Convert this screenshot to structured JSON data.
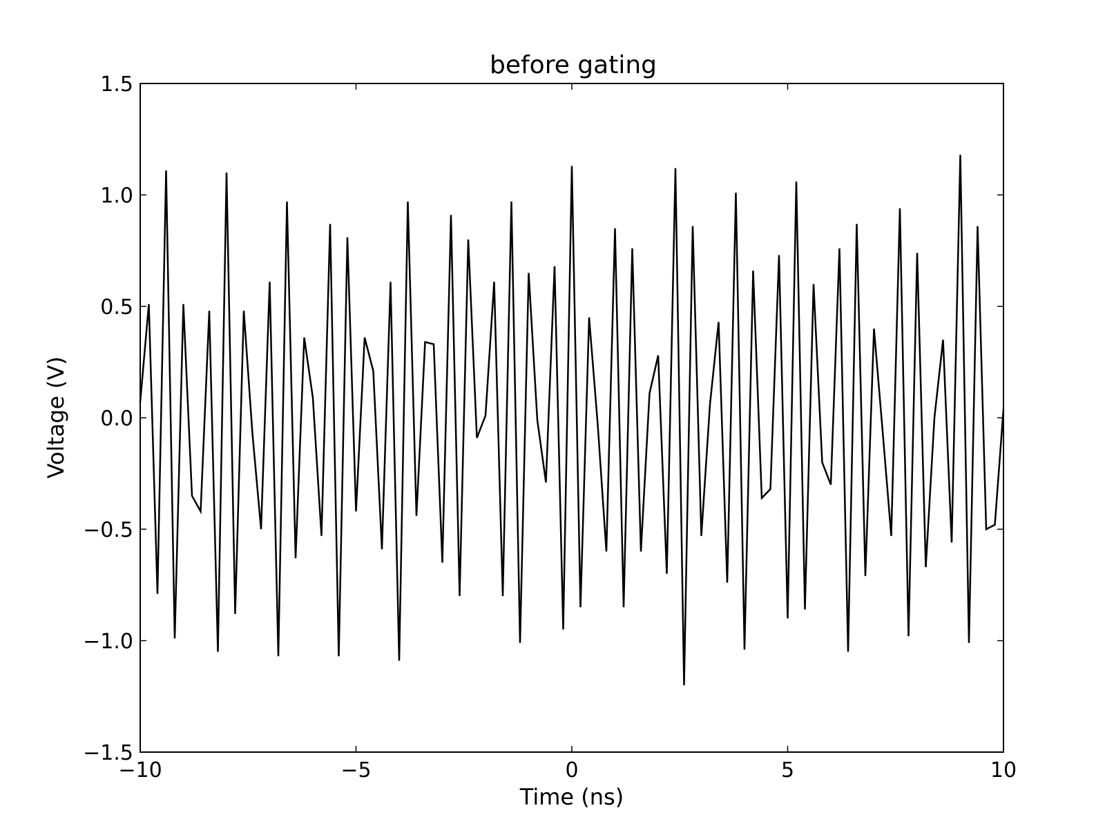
{
  "chart_data": {
    "type": "line",
    "title": "before gating",
    "xlabel": "Time (ns)",
    "ylabel": "Voltage (V)",
    "xlim": [
      -10,
      10
    ],
    "ylim": [
      -1.5,
      1.5
    ],
    "xticks": [
      -10,
      -5,
      0,
      5,
      10
    ],
    "yticks": [
      -1.5,
      -1.0,
      -0.5,
      0.0,
      0.5,
      1.0,
      1.5
    ],
    "xtick_labels": [
      "−10",
      "−5",
      "0",
      "5",
      "10"
    ],
    "ytick_labels": [
      "−1.5",
      "−1.0",
      "−0.5",
      "0.0",
      "0.5",
      "1.0",
      "1.5"
    ],
    "grid": false,
    "line_color": "#000000",
    "series": [
      {
        "x": [
          -10.0,
          -9.8,
          -9.6,
          -9.4,
          -9.2,
          -9.0,
          -8.8,
          -8.6,
          -8.4,
          -8.2,
          -8.0,
          -7.8,
          -7.6,
          -7.4,
          -7.2,
          -7.0,
          -6.8,
          -6.6,
          -6.4,
          -6.2,
          -6.0,
          -5.8,
          -5.6,
          -5.4,
          -5.2,
          -5.0,
          -4.8,
          -4.6,
          -4.4,
          -4.2,
          -4.0,
          -3.8,
          -3.6,
          -3.4,
          -3.2,
          -3.0,
          -2.8,
          -2.6,
          -2.4,
          -2.2,
          -2.0,
          -1.8,
          -1.6,
          -1.4,
          -1.2,
          -1.0,
          -0.8,
          -0.6,
          -0.4,
          -0.2,
          0.0,
          0.2,
          0.4,
          0.6,
          0.8,
          1.0,
          1.2,
          1.4,
          1.6,
          1.8,
          2.0,
          2.2,
          2.4,
          2.6,
          2.8,
          3.0,
          3.2,
          3.4,
          3.6,
          3.8,
          4.0,
          4.2,
          4.4,
          4.6,
          4.8,
          5.0,
          5.2,
          5.4,
          5.6,
          5.8,
          6.0,
          6.2,
          6.4,
          6.6,
          6.8,
          7.0,
          7.2,
          7.4,
          7.6,
          7.8,
          8.0,
          8.2,
          8.4,
          8.6,
          8.8,
          9.0,
          9.2,
          9.4,
          9.6,
          9.8,
          10.0
        ],
        "y": [
          0.07,
          0.51,
          -0.79,
          1.11,
          -0.99,
          0.51,
          -0.35,
          -0.42,
          0.48,
          -1.05,
          1.1,
          -0.88,
          0.48,
          -0.07,
          -0.5,
          0.61,
          -1.07,
          0.97,
          -0.63,
          0.36,
          0.09,
          -0.53,
          0.87,
          -1.07,
          0.81,
          -0.42,
          0.36,
          0.21,
          -0.59,
          0.61,
          -1.09,
          0.97,
          -0.44,
          0.34,
          0.33,
          -0.65,
          0.91,
          -0.8,
          0.8,
          -0.09,
          0.01,
          0.61,
          -0.8,
          0.97,
          -1.01,
          0.65,
          -0.01,
          -0.29,
          0.68,
          -0.95,
          1.13,
          -0.85,
          0.45,
          -0.03,
          -0.6,
          0.85,
          -0.85,
          0.76,
          -0.6,
          0.11,
          0.28,
          -0.7,
          1.12,
          -1.2,
          0.86,
          -0.53,
          0.06,
          0.43,
          -0.74,
          1.01,
          -1.04,
          0.66,
          -0.36,
          -0.32,
          0.73,
          -0.9,
          1.06,
          -0.86,
          0.6,
          -0.2,
          -0.3,
          0.76,
          -1.05,
          0.87,
          -0.71,
          0.4,
          -0.06,
          -0.53,
          0.94,
          -0.98,
          0.74,
          -0.67,
          0.0,
          0.35,
          -0.56,
          1.18,
          -1.01,
          0.86,
          -0.5,
          -0.48,
          0.04
        ]
      }
    ]
  }
}
